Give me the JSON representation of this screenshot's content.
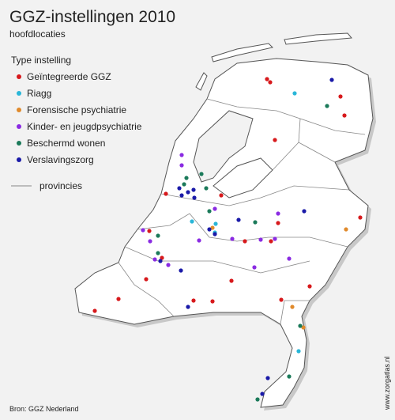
{
  "header": {
    "title": "GGZ-instellingen 2010",
    "subtitle": "hoofdlocaties"
  },
  "legend": {
    "title": "Type instelling",
    "items": [
      {
        "label": "Geïntegreerde GGZ",
        "color": "#d7191c"
      },
      {
        "label": "Riagg",
        "color": "#29b6d8"
      },
      {
        "label": "Forensische psychiatrie",
        "color": "#e08a2c"
      },
      {
        "label": "Kinder- en jeugdpsychiatrie",
        "color": "#8a2be2"
      },
      {
        "label": "Beschermd wonen",
        "color": "#1b7a5a"
      },
      {
        "label": "Verslavingszorg",
        "color": "#1a1aa8"
      }
    ],
    "boundary_label": "provincies"
  },
  "source": "Bron: GGZ Nederland",
  "credit": "www.zorgatlas.nl"
}
